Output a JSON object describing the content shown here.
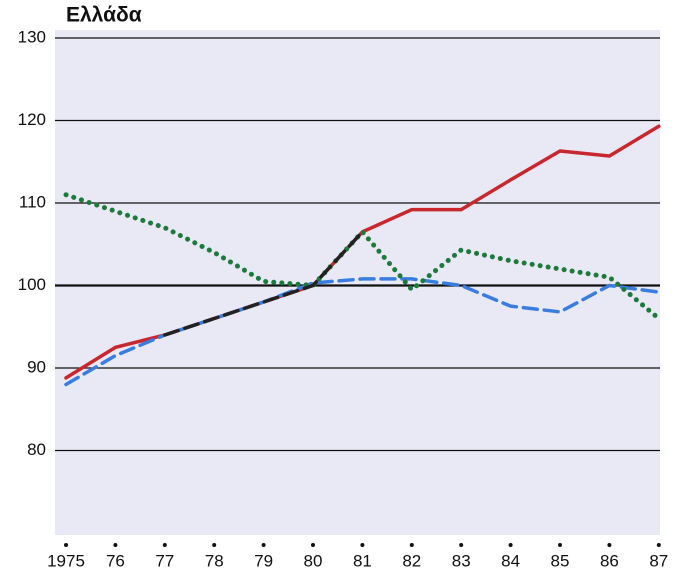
{
  "chart_data": {
    "type": "line",
    "title": "Ελλάδα",
    "categories": [
      "1975",
      "76",
      "77",
      "78",
      "79",
      "80",
      "81",
      "82",
      "83",
      "84",
      "85",
      "86",
      "87"
    ],
    "series": [
      {
        "color": "#c8282d",
        "style": "solid",
        "values": [
          88.8,
          92.5,
          94,
          96,
          98,
          100,
          106.5,
          109.2,
          109.2,
          112.8,
          116.3,
          115.7,
          119.3
        ]
      },
      {
        "color": "#3a7de0",
        "style": "dashed",
        "values": [
          88,
          91.5,
          94,
          96,
          98,
          100.3,
          100.8,
          100.8,
          100,
          97.5,
          96.8,
          100,
          99.2
        ]
      },
      {
        "color": "#1e7a3c",
        "style": "dotted",
        "values": [
          111,
          109,
          107,
          104,
          100.5,
          100,
          106.5,
          99.5,
          104.3,
          103,
          102,
          101,
          96
        ]
      },
      {
        "color": "#222222",
        "style": "dashed",
        "values": [
          null,
          null,
          94,
          96,
          98,
          100,
          106.5,
          null,
          null,
          null,
          null,
          null,
          null
        ]
      }
    ],
    "ylim": [
      70,
      130
    ],
    "yticks": [
      80,
      90,
      100,
      110,
      120,
      130
    ],
    "grid": true
  }
}
